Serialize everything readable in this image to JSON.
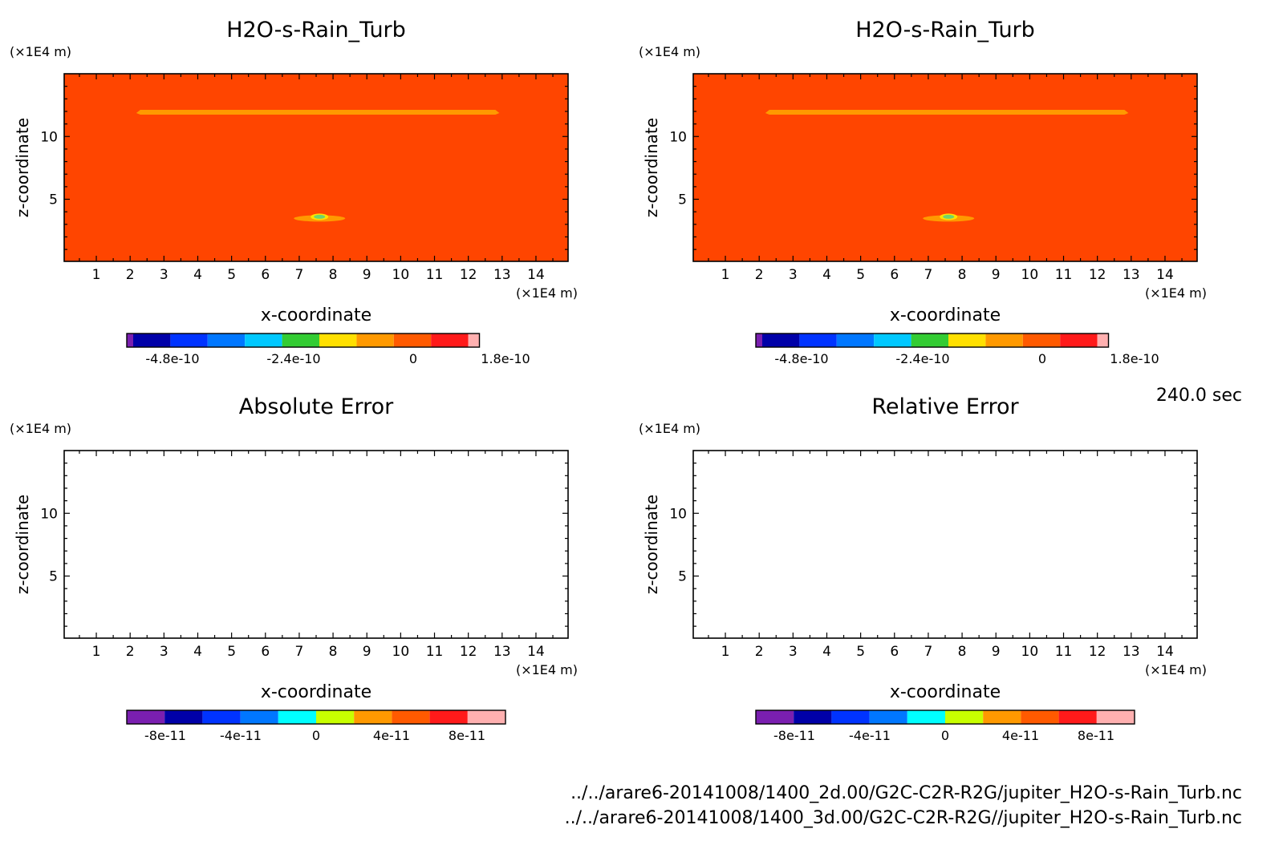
{
  "chart_data": [
    {
      "type": "heatmap",
      "title": "H2O-s-Rain_Turb",
      "xlabel": "x-coordinate",
      "ylabel": "z-coordinate",
      "x_unit": "(×1E4 m)",
      "y_unit": "(×1E4 m)",
      "xlim": [
        0.05,
        14.95
      ],
      "ylim": [
        0.05,
        15.0
      ],
      "x_ticks": [
        "1",
        "2",
        "3",
        "4",
        "5",
        "6",
        "7",
        "8",
        "9",
        "10",
        "11",
        "12",
        "13",
        "14"
      ],
      "y_ticks": [
        "5",
        "10"
      ],
      "background_value": 3e-11,
      "features": [
        {
          "kind": "band",
          "x": [
            2.3,
            12.8
          ],
          "z": 12.0,
          "color": "#ff9900"
        },
        {
          "kind": "blob",
          "x": 7.6,
          "z": 3.6,
          "colors": [
            "#ff9900",
            "#ffe000",
            "#6fd36f",
            "#ffd700"
          ]
        }
      ],
      "colorbar": {
        "colors": [
          "#7a1fb0",
          "#0000a8",
          "#0033ff",
          "#0077ff",
          "#00c8ff",
          "#33cc33",
          "#ffe000",
          "#ff9900",
          "#ff5a00",
          "#ff1a1a",
          "#ffb0b0"
        ],
        "tick_labels": [
          "-4.8e-10",
          "-2.4e-10",
          "0",
          "1.8e-10"
        ]
      }
    },
    {
      "type": "heatmap",
      "title": "H2O-s-Rain_Turb",
      "xlabel": "x-coordinate",
      "ylabel": "z-coordinate",
      "x_unit": "(×1E4 m)",
      "y_unit": "(×1E4 m)",
      "xlim": [
        0.05,
        14.95
      ],
      "ylim": [
        0.05,
        15.0
      ],
      "x_ticks": [
        "1",
        "2",
        "3",
        "4",
        "5",
        "6",
        "7",
        "8",
        "9",
        "10",
        "11",
        "12",
        "13",
        "14"
      ],
      "y_ticks": [
        "5",
        "10"
      ],
      "background_value": 3e-11,
      "features": [
        {
          "kind": "band",
          "x": [
            2.3,
            12.8
          ],
          "z": 12.0,
          "color": "#ff9900"
        },
        {
          "kind": "blob",
          "x": 7.6,
          "z": 3.6,
          "colors": [
            "#ff9900",
            "#ffe000",
            "#6fd36f",
            "#ffd700"
          ]
        }
      ],
      "colorbar": {
        "colors": [
          "#7a1fb0",
          "#0000a8",
          "#0033ff",
          "#0077ff",
          "#00c8ff",
          "#33cc33",
          "#ffe000",
          "#ff9900",
          "#ff5a00",
          "#ff1a1a",
          "#ffb0b0"
        ],
        "tick_labels": [
          "-4.8e-10",
          "-2.4e-10",
          "0",
          "1.8e-10"
        ]
      }
    },
    {
      "type": "heatmap",
      "title": "Absolute Error",
      "xlabel": "x-coordinate",
      "ylabel": "z-coordinate",
      "x_unit": "(×1E4 m)",
      "y_unit": "(×1E4 m)",
      "xlim": [
        0.05,
        14.95
      ],
      "ylim": [
        0.05,
        15.0
      ],
      "x_ticks": [
        "1",
        "2",
        "3",
        "4",
        "5",
        "6",
        "7",
        "8",
        "9",
        "10",
        "11",
        "12",
        "13",
        "14"
      ],
      "y_ticks": [
        "5",
        "10"
      ],
      "features": [],
      "colorbar": {
        "colors": [
          "#7a1fb0",
          "#0000a8",
          "#0033ff",
          "#0077ff",
          "#00ffff",
          "#c8ff00",
          "#ff9900",
          "#ff5a00",
          "#ff1a1a",
          "#ffb0b0"
        ],
        "tick_labels": [
          "-8e-11",
          "-4e-11",
          "0",
          "4e-11",
          "8e-11"
        ]
      }
    },
    {
      "type": "heatmap",
      "title": "Relative Error",
      "xlabel": "x-coordinate",
      "ylabel": "z-coordinate",
      "x_unit": "(×1E4 m)",
      "y_unit": "(×1E4 m)",
      "xlim": [
        0.05,
        14.95
      ],
      "ylim": [
        0.05,
        15.0
      ],
      "x_ticks": [
        "1",
        "2",
        "3",
        "4",
        "5",
        "6",
        "7",
        "8",
        "9",
        "10",
        "11",
        "12",
        "13",
        "14"
      ],
      "y_ticks": [
        "5",
        "10"
      ],
      "features": [],
      "colorbar": {
        "colors": [
          "#7a1fb0",
          "#0000a8",
          "#0033ff",
          "#0077ff",
          "#00ffff",
          "#c8ff00",
          "#ff9900",
          "#ff5a00",
          "#ff1a1a",
          "#ffb0b0"
        ],
        "tick_labels": [
          "-8e-11",
          "-4e-11",
          "0",
          "4e-11",
          "8e-11"
        ]
      }
    }
  ],
  "plot_fill_color": "#ff4500",
  "time_label": "240.0 sec",
  "file_paths": [
    "../../arare6-20141008/1400_2d.00/G2C-C2R-R2G/jupiter_H2O-s-Rain_Turb.nc",
    "../../arare6-20141008/1400_3d.00/G2C-C2R-R2G//jupiter_H2O-s-Rain_Turb.nc"
  ]
}
